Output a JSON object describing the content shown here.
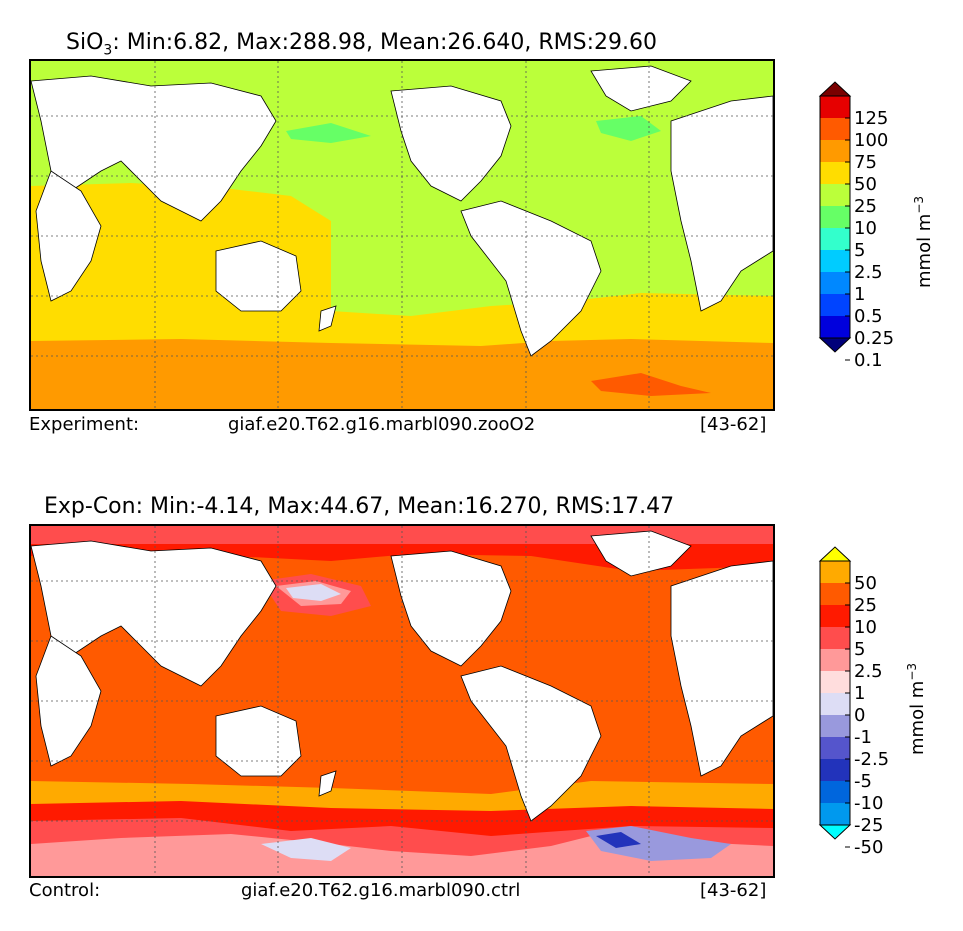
{
  "chart_data": [
    {
      "type": "heatmap",
      "title_var": "SiO",
      "title_sub": "3",
      "title_stats": ": Min:6.82, Max:288.98, Mean:26.640, RMS:29.60",
      "footer": {
        "label": "Experiment:",
        "case": "giaf.e20.T62.g16.marbl090.zooO2",
        "years": "[43-62]"
      },
      "colorbar": {
        "units": "mmol m",
        "units_exp": "−3",
        "levels": [
          "125",
          "100",
          "75",
          "50",
          "25",
          "10",
          "5",
          "2.5",
          "1",
          "0.5",
          "0.25",
          "0.1"
        ],
        "colors": [
          "#7a0000",
          "#e60000",
          "#ff5a00",
          "#ff9a00",
          "#ffdd00",
          "#bbff3a",
          "#66ff66",
          "#33ffcc",
          "#00ccff",
          "#0088ff",
          "#0044ff",
          "#0000dd",
          "#00007a"
        ]
      }
    },
    {
      "type": "heatmap",
      "title": "Exp-Con: Min:-4.14, Max:44.67, Mean:16.270, RMS:17.47",
      "footer": {
        "label": "Control:",
        "case": "giaf.e20.T62.g16.marbl090.ctrl",
        "years": "[43-62]"
      },
      "colorbar": {
        "units": "mmol m",
        "units_exp": "−3",
        "levels": [
          "50",
          "25",
          "10",
          "5",
          "2.5",
          "1",
          "0",
          "-1",
          "-2.5",
          "-5",
          "-10",
          "-25",
          "-50"
        ],
        "colors": [
          "#ffff00",
          "#ffaa00",
          "#ff5a00",
          "#ff1a00",
          "#ff4d4d",
          "#ff9999",
          "#ffdddd",
          "#ddddf5",
          "#9999dd",
          "#5555cc",
          "#2233bb",
          "#0066dd",
          "#0099ee",
          "#00ffff"
        ]
      }
    }
  ]
}
